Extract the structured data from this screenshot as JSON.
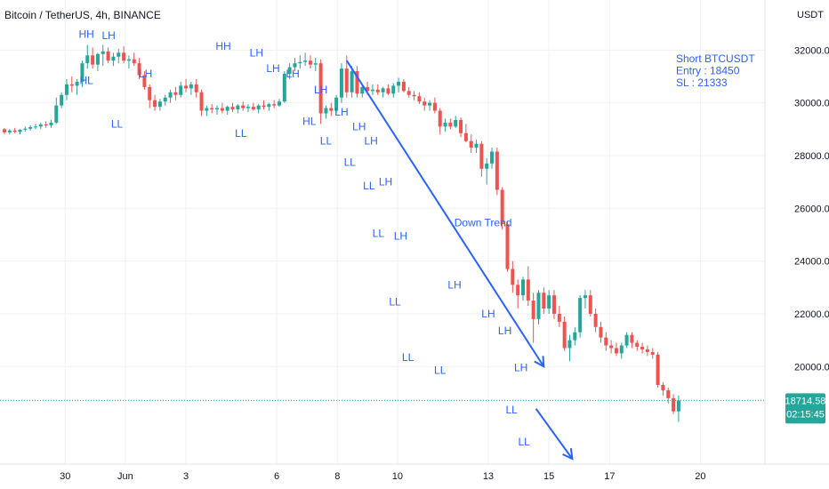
{
  "header": {
    "symbol_title": "Bitcoin / TetherUS, 4h, BINANCE"
  },
  "colors": {
    "up": "#26a69a",
    "down": "#ef5350",
    "annotation": "#2962ff",
    "grid": "#eef0f3",
    "last_price_bg": "#26a69a",
    "price_line": "#26a69a"
  },
  "chart_data": {
    "type": "candlestick",
    "title": "Bitcoin / TetherUS, 4h, BINANCE",
    "y_unit_label": "USDT",
    "ylim": [
      16300,
      33900
    ],
    "grid": true,
    "y_ticks": [
      {
        "value": 20000,
        "label": "20000.00"
      },
      {
        "value": 22000,
        "label": "22000.00"
      },
      {
        "value": 24000,
        "label": "24000.00"
      },
      {
        "value": 26000,
        "label": "26000.00"
      },
      {
        "value": 28000,
        "label": "28000.00"
      },
      {
        "value": 30000,
        "label": "30000.00"
      },
      {
        "value": 32000,
        "label": "32000.00"
      }
    ],
    "x_ticks": [
      {
        "t": 11.7,
        "label": "30"
      },
      {
        "t": 23.3,
        "label": "Jun"
      },
      {
        "t": 35.0,
        "label": "3"
      },
      {
        "t": 52.5,
        "label": "6"
      },
      {
        "t": 64.2,
        "label": "8"
      },
      {
        "t": 75.8,
        "label": "10"
      },
      {
        "t": 93.3,
        "label": "13"
      },
      {
        "t": 105.0,
        "label": "15"
      },
      {
        "t": 116.7,
        "label": "17"
      },
      {
        "t": 134.2,
        "label": "20"
      }
    ],
    "candles": [
      [
        29000,
        29050,
        28800,
        28880
      ],
      [
        28880,
        29000,
        28800,
        28950
      ],
      [
        28950,
        29050,
        28850,
        28900
      ],
      [
        28900,
        29000,
        28800,
        28980
      ],
      [
        28980,
        29100,
        28900,
        29020
      ],
      [
        29020,
        29150,
        28950,
        29080
      ],
      [
        29080,
        29200,
        29000,
        29100
      ],
      [
        29100,
        29250,
        29000,
        29180
      ],
      [
        29180,
        29300,
        29050,
        29150
      ],
      [
        29150,
        29350,
        29050,
        29250
      ],
      [
        29250,
        30200,
        29200,
        29900
      ],
      [
        29900,
        30400,
        29800,
        30300
      ],
      [
        30300,
        30900,
        30100,
        30700
      ],
      [
        30700,
        31000,
        30400,
        30650
      ],
      [
        30650,
        30900,
        30300,
        30800
      ],
      [
        30800,
        31600,
        30600,
        31500
      ],
      [
        31500,
        32200,
        31300,
        31800
      ],
      [
        31800,
        32100,
        31300,
        31450
      ],
      [
        31450,
        31900,
        31200,
        31850
      ],
      [
        31850,
        32200,
        31400,
        31950
      ],
      [
        31950,
        32100,
        31500,
        31600
      ],
      [
        31600,
        31900,
        31400,
        31750
      ],
      [
        31750,
        32050,
        31500,
        31900
      ],
      [
        31900,
        32150,
        31500,
        31600
      ],
      [
        31600,
        31800,
        31300,
        31650
      ],
      [
        31650,
        31900,
        31400,
        31500
      ],
      [
        31500,
        31700,
        30900,
        31050
      ],
      [
        31050,
        31200,
        30500,
        30600
      ],
      [
        30600,
        30700,
        29800,
        30100
      ],
      [
        30100,
        30300,
        29700,
        29850
      ],
      [
        29850,
        30150,
        29700,
        30050
      ],
      [
        30050,
        30300,
        29900,
        30200
      ],
      [
        30200,
        30500,
        30000,
        30400
      ],
      [
        30400,
        30600,
        30100,
        30300
      ],
      [
        30300,
        30800,
        30200,
        30650
      ],
      [
        30650,
        30900,
        30400,
        30550
      ],
      [
        30550,
        30800,
        30300,
        30700
      ],
      [
        30700,
        30900,
        30200,
        30400
      ],
      [
        30400,
        30500,
        29500,
        29700
      ],
      [
        29700,
        29900,
        29500,
        29800
      ],
      [
        29800,
        29950,
        29600,
        29750
      ],
      [
        29750,
        29900,
        29550,
        29800
      ],
      [
        29800,
        30000,
        29600,
        29700
      ],
      [
        29700,
        29900,
        29550,
        29850
      ],
      [
        29850,
        30000,
        29650,
        29750
      ],
      [
        29750,
        29950,
        29600,
        29900
      ],
      [
        29900,
        30050,
        29700,
        29800
      ],
      [
        29800,
        29950,
        29650,
        29850
      ],
      [
        29850,
        30000,
        29700,
        29750
      ],
      [
        29750,
        29950,
        29600,
        29900
      ],
      [
        29900,
        30100,
        29750,
        29850
      ],
      [
        29850,
        30000,
        29700,
        29950
      ],
      [
        29950,
        30100,
        29800,
        29900
      ],
      [
        29900,
        30150,
        29850,
        30050
      ],
      [
        30050,
        31200,
        30000,
        31100
      ],
      [
        31100,
        31500,
        30900,
        31350
      ],
      [
        31350,
        31700,
        31200,
        31500
      ],
      [
        31500,
        31800,
        31300,
        31550
      ],
      [
        31550,
        31900,
        31400,
        31600
      ],
      [
        31600,
        31800,
        31300,
        31450
      ],
      [
        31450,
        31700,
        31200,
        31500
      ],
      [
        31500,
        31650,
        29200,
        29600
      ],
      [
        29600,
        29900,
        29400,
        29800
      ],
      [
        29800,
        30000,
        29500,
        29700
      ],
      [
        29700,
        30300,
        29600,
        30200
      ],
      [
        30200,
        31500,
        30000,
        31300
      ],
      [
        31300,
        31800,
        30200,
        30400
      ],
      [
        30400,
        31400,
        30200,
        31200
      ],
      [
        31200,
        31400,
        30200,
        30350
      ],
      [
        30350,
        30700,
        30200,
        30600
      ],
      [
        30600,
        30800,
        30300,
        30450
      ],
      [
        30450,
        30700,
        30300,
        30500
      ],
      [
        30500,
        30700,
        30300,
        30400
      ],
      [
        30400,
        30600,
        30200,
        30550
      ],
      [
        30550,
        30700,
        30300,
        30350
      ],
      [
        30350,
        30750,
        30200,
        30650
      ],
      [
        30650,
        30950,
        30400,
        30800
      ],
      [
        30800,
        30900,
        30400,
        30450
      ],
      [
        30450,
        30600,
        30200,
        30300
      ],
      [
        30300,
        30450,
        30100,
        30250
      ],
      [
        30250,
        30400,
        29950,
        30050
      ],
      [
        30050,
        30200,
        29700,
        29900
      ],
      [
        29900,
        30100,
        29700,
        30000
      ],
      [
        30000,
        30200,
        29600,
        29700
      ],
      [
        29700,
        29800,
        28800,
        29100
      ],
      [
        29100,
        29400,
        28900,
        29250
      ],
      [
        29250,
        29400,
        29000,
        29100
      ],
      [
        29100,
        29500,
        29050,
        29350
      ],
      [
        29350,
        29450,
        28700,
        28850
      ],
      [
        28850,
        29200,
        28500,
        28550
      ],
      [
        28550,
        28800,
        28100,
        28300
      ],
      [
        28300,
        28600,
        28100,
        28450
      ],
      [
        28450,
        28550,
        27200,
        27500
      ],
      [
        27500,
        27900,
        26900,
        27700
      ],
      [
        27700,
        28300,
        27500,
        28150
      ],
      [
        28150,
        28300,
        26500,
        26700
      ],
      [
        26700,
        26800,
        25200,
        25400
      ],
      [
        25400,
        25500,
        23600,
        23700
      ],
      [
        23700,
        24000,
        22800,
        23100
      ],
      [
        23100,
        23300,
        22200,
        22700
      ],
      [
        22700,
        23400,
        22500,
        23300
      ],
      [
        23300,
        23800,
        22300,
        22500
      ],
      [
        22500,
        22800,
        20900,
        21800
      ],
      [
        21800,
        22900,
        21600,
        22800
      ],
      [
        22800,
        23000,
        22000,
        22200
      ],
      [
        22200,
        22900,
        22000,
        22700
      ],
      [
        22700,
        22900,
        21800,
        22000
      ],
      [
        22000,
        22300,
        21500,
        21700
      ],
      [
        21700,
        21900,
        20600,
        20700
      ],
      [
        20700,
        21200,
        20200,
        21000
      ],
      [
        21000,
        21500,
        20800,
        21300
      ],
      [
        21300,
        22700,
        21100,
        22600
      ],
      [
        22600,
        22900,
        22200,
        22700
      ],
      [
        22700,
        22900,
        21900,
        22000
      ],
      [
        22000,
        22200,
        21300,
        21500
      ],
      [
        21500,
        21700,
        20900,
        21100
      ],
      [
        21100,
        21300,
        20600,
        20800
      ],
      [
        20800,
        21000,
        20500,
        20700
      ],
      [
        20700,
        20900,
        20400,
        20500
      ],
      [
        20500,
        20900,
        20300,
        20800
      ],
      [
        20800,
        21300,
        20700,
        21200
      ],
      [
        21200,
        21300,
        20700,
        20900
      ],
      [
        20900,
        21000,
        20600,
        20750
      ],
      [
        20750,
        20900,
        20500,
        20650
      ],
      [
        20650,
        20800,
        20400,
        20550
      ],
      [
        20550,
        20700,
        20300,
        20450
      ],
      [
        20450,
        20550,
        19200,
        19300
      ],
      [
        19300,
        19400,
        18900,
        19100
      ],
      [
        19100,
        19200,
        18600,
        18800
      ],
      [
        18800,
        18950,
        18200,
        18300
      ],
      [
        18300,
        18900,
        17900,
        18715
      ]
    ],
    "annotations": [
      {
        "text": "HH",
        "t": 15.8,
        "price": 32600,
        "placement": "above",
        "series": "structure"
      },
      {
        "text": "HL",
        "t": 15.8,
        "price": 30850,
        "placement": "below",
        "series": "structure"
      },
      {
        "text": "LH",
        "t": 20.1,
        "price": 32550,
        "placement": "above",
        "series": "structure"
      },
      {
        "text": "LL",
        "t": 21.7,
        "price": 29200,
        "placement": "below",
        "series": "structure"
      },
      {
        "text": "LH",
        "t": 27.2,
        "price": 31100,
        "placement": "above",
        "series": "structure"
      },
      {
        "text": "HH",
        "t": 42.2,
        "price": 32150,
        "placement": "above",
        "series": "structure"
      },
      {
        "text": "LH",
        "t": 48.6,
        "price": 31900,
        "placement": "above",
        "series": "structure"
      },
      {
        "text": "LL",
        "t": 45.6,
        "price": 28850,
        "placement": "below",
        "series": "structure"
      },
      {
        "text": "LH",
        "t": 51.8,
        "price": 31300,
        "placement": "above",
        "series": "structure"
      },
      {
        "text": "LH",
        "t": 55.6,
        "price": 31100,
        "placement": "above",
        "series": "structure"
      },
      {
        "text": "LH",
        "t": 61.0,
        "price": 30500,
        "placement": "above",
        "series": "structure"
      },
      {
        "text": "HL",
        "t": 58.8,
        "price": 29300,
        "placement": "below",
        "series": "structure"
      },
      {
        "text": "LH",
        "t": 65.0,
        "price": 29650,
        "placement": "above",
        "series": "structure"
      },
      {
        "text": "LL",
        "t": 62.0,
        "price": 28550,
        "placement": "below",
        "series": "structure"
      },
      {
        "text": "LH",
        "t": 68.4,
        "price": 29100,
        "placement": "above",
        "series": "structure"
      },
      {
        "text": "LL",
        "t": 66.6,
        "price": 27750,
        "placement": "below",
        "series": "structure"
      },
      {
        "text": "LH",
        "t": 70.7,
        "price": 28550,
        "placement": "above",
        "series": "structure"
      },
      {
        "text": "LL",
        "t": 70.3,
        "price": 26850,
        "placement": "below",
        "series": "structure"
      },
      {
        "text": "LH",
        "t": 73.5,
        "price": 27000,
        "placement": "above",
        "series": "structure"
      },
      {
        "text": "LL",
        "t": 72.1,
        "price": 25050,
        "placement": "below",
        "series": "structure"
      },
      {
        "text": "LH",
        "t": 76.4,
        "price": 24950,
        "placement": "above",
        "series": "structure"
      },
      {
        "text": "LL",
        "t": 75.3,
        "price": 22450,
        "placement": "below",
        "series": "structure"
      },
      {
        "text": "LL",
        "t": 77.8,
        "price": 20350,
        "placement": "below",
        "series": "structure"
      },
      {
        "text": "LH",
        "t": 86.8,
        "price": 23100,
        "placement": "above",
        "series": "structure"
      },
      {
        "text": "LL",
        "t": 84.0,
        "price": 19850,
        "placement": "below",
        "series": "structure"
      },
      {
        "text": "LH",
        "t": 93.3,
        "price": 22000,
        "placement": "above",
        "series": "structure"
      },
      {
        "text": "LH",
        "t": 96.5,
        "price": 21350,
        "placement": "above",
        "series": "structure"
      },
      {
        "text": "LH",
        "t": 99.6,
        "price": 19950,
        "placement": "above",
        "series": "structure"
      },
      {
        "text": "LL",
        "t": 97.8,
        "price": 18350,
        "placement": "below",
        "series": "structure"
      },
      {
        "text": "LL",
        "t": 100.2,
        "price": 17150,
        "placement": "below",
        "series": "structure"
      },
      {
        "text": "Down Trend",
        "t": 92.3,
        "price": 25450,
        "placement": "center",
        "series": "trend"
      }
    ],
    "trend_arrows": [
      {
        "from": {
          "t": 66.0,
          "price": 31600
        },
        "to": {
          "t": 104.0,
          "price": 20000
        },
        "label": "Down Trend"
      },
      {
        "from": {
          "t": 102.5,
          "price": 18400
        },
        "to": {
          "t": 109.5,
          "price": 16500
        },
        "label": ""
      }
    ],
    "info_box": {
      "lines": [
        "Short BTCUSDT",
        "Entry : 18450",
        "SL : 21333"
      ]
    },
    "last_price": {
      "value": 18714.58,
      "label": "18714.58",
      "countdown": "02:15:45"
    }
  }
}
